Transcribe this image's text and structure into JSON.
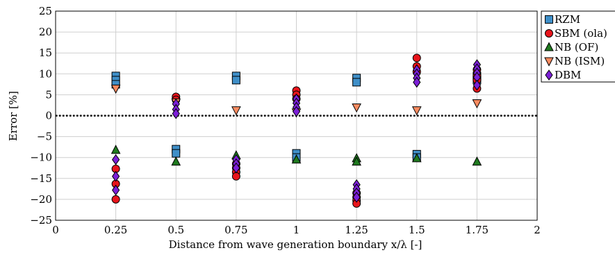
{
  "chart_data": {
    "type": "scatter",
    "xlabel": "Distance from wave generation boundary x/λ [-]",
    "ylabel": "Error [%]",
    "xlim": [
      0,
      2
    ],
    "ylim": [
      -25,
      25
    ],
    "xticks": [
      "0",
      "0.25",
      "0.5",
      "0.75",
      "1",
      "1.25",
      "1.5",
      "1.75",
      "2"
    ],
    "yticks": [
      "25",
      "20",
      "15",
      "10",
      "5",
      "0",
      "−5",
      "−10",
      "−15",
      "−20",
      "−25"
    ],
    "grid": true,
    "legend_position": "outside-right",
    "zero_line": "dotted",
    "series": [
      {
        "name": "RZM",
        "marker": "square",
        "color": "#3f8fc8",
        "points": [
          [
            0.25,
            9.5
          ],
          [
            0.25,
            8.5
          ],
          [
            0.25,
            7.5
          ],
          [
            0.5,
            -8.0
          ],
          [
            0.5,
            -9.0
          ],
          [
            0.75,
            9.5
          ],
          [
            0.75,
            8.5
          ],
          [
            1.0,
            -9.0
          ],
          [
            1.0,
            -10.0
          ],
          [
            1.25,
            9.0
          ],
          [
            1.25,
            8.0
          ],
          [
            1.5,
            -9.2
          ],
          [
            1.5,
            -10.0
          ],
          [
            1.75,
            9.5
          ],
          [
            1.75,
            8.5
          ]
        ]
      },
      {
        "name": "SBM (ola)",
        "marker": "circle",
        "color": "#e8141b",
        "points": [
          [
            0.25,
            -12.7
          ],
          [
            0.25,
            -16.3
          ],
          [
            0.25,
            -20.0
          ],
          [
            0.5,
            4.5
          ],
          [
            0.5,
            3.8
          ],
          [
            0.75,
            -11.5
          ],
          [
            0.75,
            -12.5
          ],
          [
            0.75,
            -13.5
          ],
          [
            0.75,
            -14.5
          ],
          [
            1.0,
            6.0
          ],
          [
            1.0,
            5.0
          ],
          [
            1.0,
            4.0
          ],
          [
            1.25,
            -18.5
          ],
          [
            1.25,
            -19.5
          ],
          [
            1.25,
            -20.3
          ],
          [
            1.25,
            -21.0
          ],
          [
            1.5,
            13.8
          ],
          [
            1.5,
            11.8
          ],
          [
            1.5,
            10.5
          ],
          [
            1.75,
            11.0
          ],
          [
            1.75,
            9.5
          ],
          [
            1.75,
            8.5
          ],
          [
            1.75,
            6.5
          ]
        ]
      },
      {
        "name": "NB (OF)",
        "marker": "triangle-up",
        "color": "#1f7a1f",
        "points": [
          [
            0.25,
            -8.2
          ],
          [
            0.5,
            -11.0
          ],
          [
            0.75,
            -9.5
          ],
          [
            1.0,
            -10.5
          ],
          [
            1.25,
            -10.2
          ],
          [
            1.25,
            -11.0
          ],
          [
            1.5,
            -10.2
          ],
          [
            1.75,
            -11.0
          ]
        ]
      },
      {
        "name": "NB (ISM)",
        "marker": "triangle-down",
        "color": "#f98b60",
        "points": [
          [
            0.25,
            6.5
          ],
          [
            0.5,
            3.2
          ],
          [
            0.75,
            1.3
          ],
          [
            1.0,
            0.8
          ],
          [
            1.25,
            2.0
          ],
          [
            1.5,
            1.3
          ],
          [
            1.75,
            3.0
          ]
        ]
      },
      {
        "name": "DBM",
        "marker": "diamond",
        "color": "#7b1fd6",
        "points": [
          [
            0.25,
            -10.5
          ],
          [
            0.25,
            -14.5
          ],
          [
            0.25,
            -17.8
          ],
          [
            0.5,
            2.8
          ],
          [
            0.5,
            1.5
          ],
          [
            0.5,
            0.5
          ],
          [
            0.75,
            -10.5
          ],
          [
            0.75,
            -11.5
          ],
          [
            0.75,
            -12.5
          ],
          [
            1.0,
            4.0
          ],
          [
            1.0,
            3.0
          ],
          [
            1.0,
            2.0
          ],
          [
            1.0,
            1.0
          ],
          [
            1.25,
            -16.5
          ],
          [
            1.25,
            -17.5
          ],
          [
            1.25,
            -18.5
          ],
          [
            1.25,
            -19.5
          ],
          [
            1.5,
            11.0
          ],
          [
            1.5,
            10.0
          ],
          [
            1.5,
            9.0
          ],
          [
            1.5,
            8.0
          ],
          [
            1.75,
            12.2
          ],
          [
            1.75,
            11.2
          ],
          [
            1.75,
            10.2
          ],
          [
            1.75,
            9.2
          ],
          [
            1.75,
            7.3
          ]
        ]
      }
    ]
  }
}
